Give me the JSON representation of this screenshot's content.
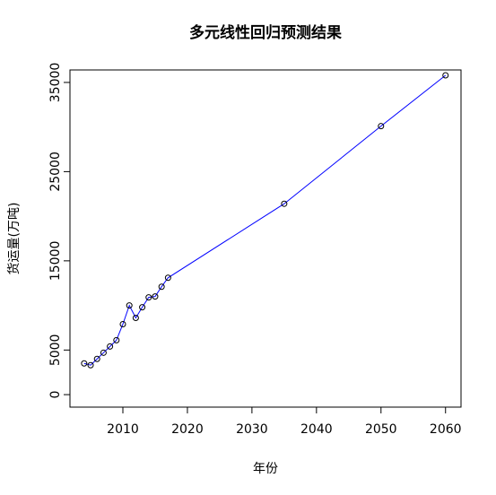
{
  "chart_data": {
    "type": "line",
    "title": "多元线性回归预测结果",
    "x_label": "年份",
    "y_label": "货运量(万吨)",
    "x": [
      2004,
      2005,
      2006,
      2007,
      2008,
      2009,
      2010,
      2011,
      2012,
      2013,
      2014,
      2015,
      2016,
      2017,
      2035,
      2050,
      2060
    ],
    "series": [
      {
        "name": "货运量(万吨)",
        "color": "#0000ff",
        "marker_color": "#000000",
        "values": [
          3500,
          3300,
          4000,
          4700,
          5400,
          6100,
          7900,
          10000,
          8600,
          9800,
          10900,
          11000,
          12100,
          13100,
          21400,
          30100,
          35800
        ]
      }
    ],
    "xlim": [
      2001.8,
      2062.4
    ],
    "xticks": [
      2010,
      2020,
      2030,
      2040,
      2050,
      2060
    ],
    "ylim": [
      -1400,
      36400
    ],
    "yticks": [
      0,
      5000,
      15000,
      25000,
      35000
    ],
    "grid": false
  }
}
